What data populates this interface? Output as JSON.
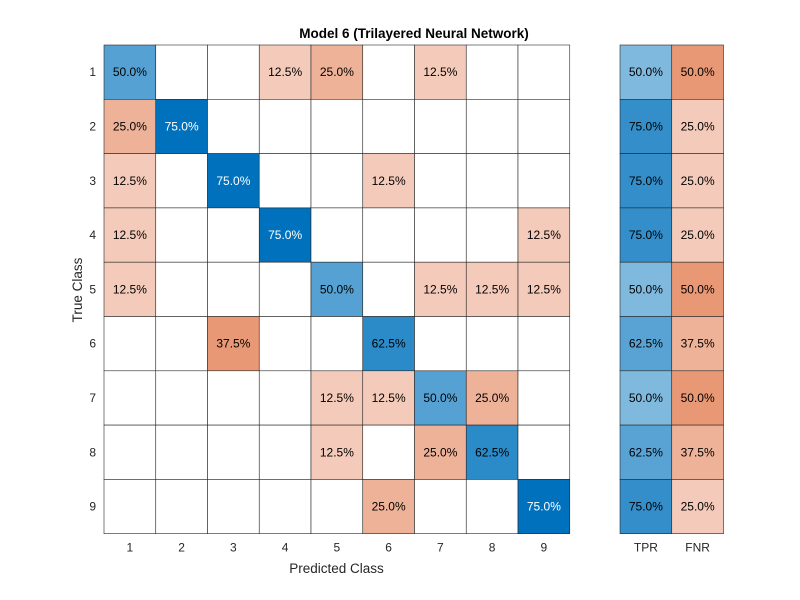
{
  "chart_data": {
    "type": "heatmap",
    "title": "Model 6 (Trilayered Neural Network)",
    "xlabel": "Predicted Class",
    "ylabel": "True Class",
    "classes": [
      "1",
      "2",
      "3",
      "4",
      "5",
      "6",
      "7",
      "8",
      "9"
    ],
    "summary_columns": [
      "TPR",
      "FNR"
    ],
    "value_suffix": "%",
    "matrix": [
      [
        50.0,
        null,
        null,
        12.5,
        25.0,
        null,
        12.5,
        null,
        null
      ],
      [
        25.0,
        75.0,
        null,
        null,
        null,
        null,
        null,
        null,
        null
      ],
      [
        12.5,
        null,
        75.0,
        null,
        null,
        12.5,
        null,
        null,
        null
      ],
      [
        12.5,
        null,
        null,
        75.0,
        null,
        null,
        null,
        null,
        12.5
      ],
      [
        12.5,
        null,
        null,
        null,
        50.0,
        null,
        12.5,
        12.5,
        12.5
      ],
      [
        null,
        null,
        37.5,
        null,
        null,
        62.5,
        null,
        null,
        null
      ],
      [
        null,
        null,
        null,
        null,
        12.5,
        12.5,
        50.0,
        25.0,
        null
      ],
      [
        null,
        null,
        null,
        null,
        12.5,
        null,
        25.0,
        62.5,
        null
      ],
      [
        null,
        null,
        null,
        null,
        null,
        25.0,
        null,
        null,
        75.0
      ]
    ],
    "tpr": [
      50.0,
      75.0,
      75.0,
      75.0,
      50.0,
      62.5,
      50.0,
      62.5,
      75.0
    ],
    "fnr": [
      50.0,
      25.0,
      25.0,
      25.0,
      50.0,
      37.5,
      50.0,
      37.5,
      25.0
    ],
    "colors": {
      "correct_max": "#0072bd",
      "incorrect_max": "#d95319",
      "empty": "#ffffff",
      "grid": "#262626"
    }
  }
}
